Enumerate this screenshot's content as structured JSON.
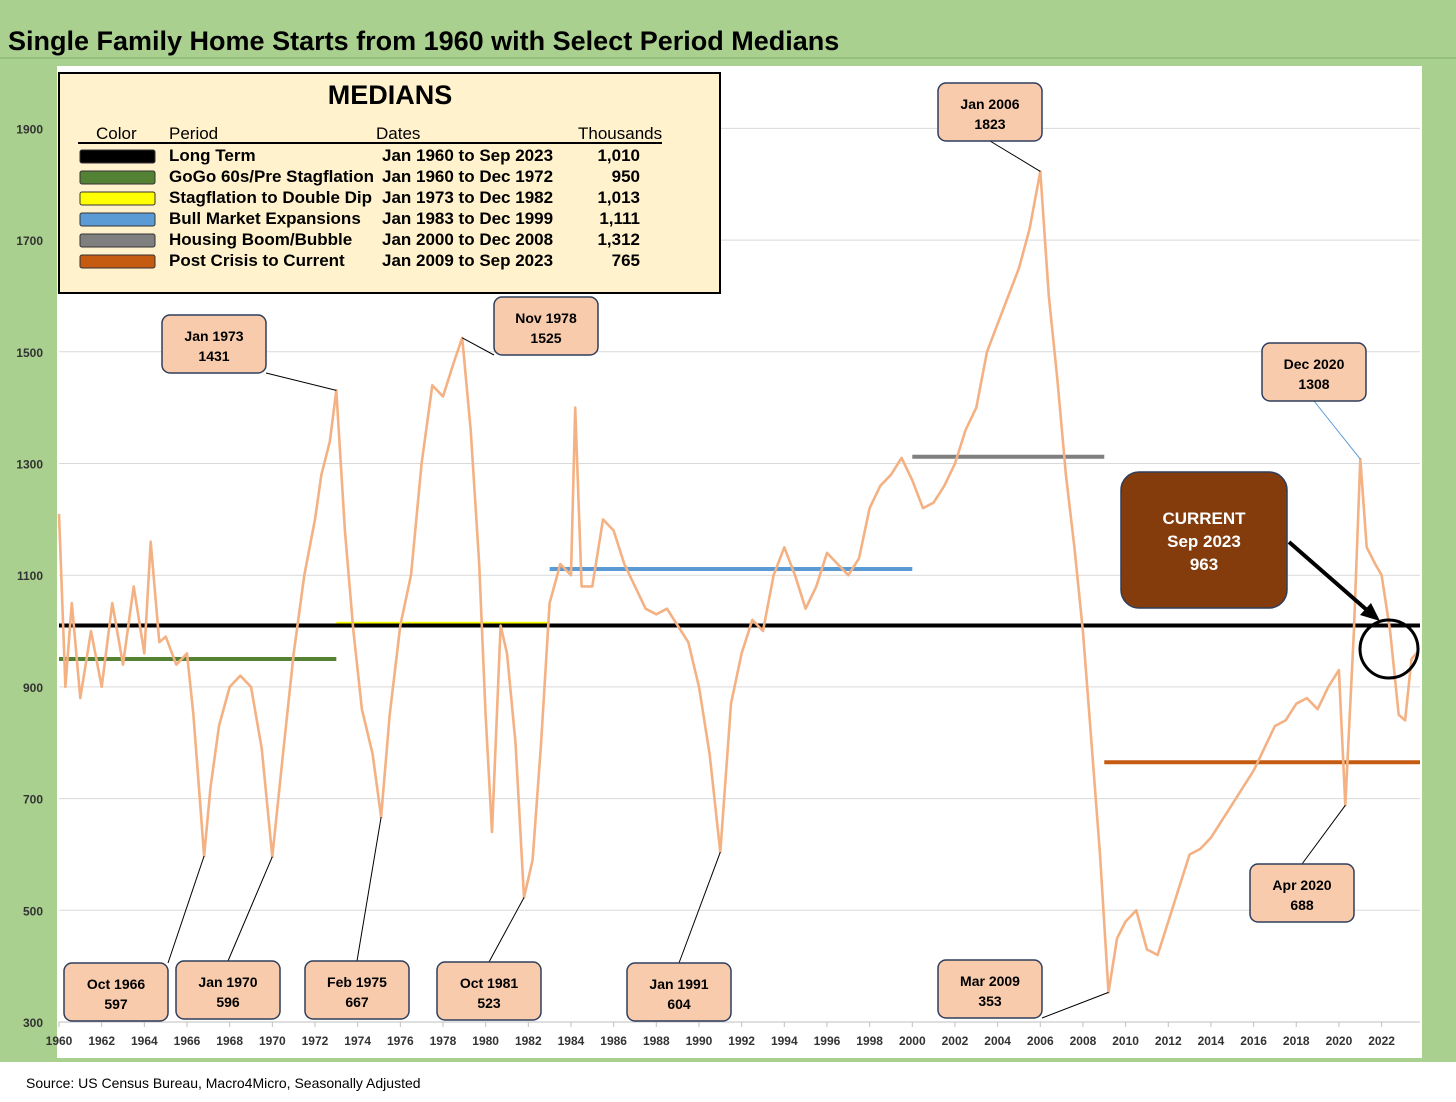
{
  "chart_data": {
    "type": "line",
    "title": "Single Family Home Starts from 1960 with Select Period Medians",
    "source": "Source: US Census Bureau, Macro4Micro, Seasonally Adjusted",
    "xlim": [
      1960,
      2023.8
    ],
    "ylim": [
      300,
      2000
    ],
    "y_ticks": [
      300,
      500,
      700,
      900,
      1100,
      1300,
      1500,
      1700,
      1900
    ],
    "x_ticks": [
      1960,
      1962,
      1964,
      1966,
      1968,
      1970,
      1972,
      1974,
      1976,
      1978,
      1980,
      1982,
      1984,
      1986,
      1988,
      1990,
      1992,
      1994,
      1996,
      1998,
      2000,
      2002,
      2004,
      2006,
      2008,
      2010,
      2012,
      2014,
      2016,
      2018,
      2020,
      2022
    ],
    "grid": "horizontal",
    "series": [
      {
        "color": "#F4B183",
        "points": [
          [
            1960.0,
            1210
          ],
          [
            1960.3,
            900
          ],
          [
            1960.6,
            1050
          ],
          [
            1961.0,
            880
          ],
          [
            1961.5,
            1000
          ],
          [
            1962.0,
            900
          ],
          [
            1962.5,
            1050
          ],
          [
            1963.0,
            940
          ],
          [
            1963.5,
            1080
          ],
          [
            1964.0,
            960
          ],
          [
            1964.3,
            1160
          ],
          [
            1964.7,
            980
          ],
          [
            1965.0,
            990
          ],
          [
            1965.5,
            940
          ],
          [
            1966.0,
            960
          ],
          [
            1966.3,
            850
          ],
          [
            1966.6,
            700
          ],
          [
            1966.8,
            597
          ],
          [
            1967.1,
            720
          ],
          [
            1967.5,
            830
          ],
          [
            1968.0,
            900
          ],
          [
            1968.5,
            920
          ],
          [
            1969.0,
            900
          ],
          [
            1969.5,
            790
          ],
          [
            1970.0,
            596
          ],
          [
            1970.5,
            780
          ],
          [
            1971.0,
            960
          ],
          [
            1971.5,
            1100
          ],
          [
            1972.0,
            1200
          ],
          [
            1972.3,
            1280
          ],
          [
            1972.7,
            1340
          ],
          [
            1973.0,
            1431
          ],
          [
            1973.4,
            1180
          ],
          [
            1973.8,
            1000
          ],
          [
            1974.2,
            860
          ],
          [
            1974.7,
            780
          ],
          [
            1975.1,
            667
          ],
          [
            1975.5,
            850
          ],
          [
            1976.0,
            1010
          ],
          [
            1976.5,
            1100
          ],
          [
            1977.0,
            1300
          ],
          [
            1977.5,
            1440
          ],
          [
            1978.0,
            1420
          ],
          [
            1978.5,
            1480
          ],
          [
            1978.9,
            1525
          ],
          [
            1979.3,
            1360
          ],
          [
            1979.7,
            1120
          ],
          [
            1980.0,
            850
          ],
          [
            1980.3,
            640
          ],
          [
            1980.7,
            1010
          ],
          [
            1981.0,
            960
          ],
          [
            1981.4,
            800
          ],
          [
            1981.8,
            523
          ],
          [
            1982.2,
            590
          ],
          [
            1982.6,
            800
          ],
          [
            1983.0,
            1050
          ],
          [
            1983.5,
            1120
          ],
          [
            1984.0,
            1100
          ],
          [
            1984.2,
            1400
          ],
          [
            1984.5,
            1080
          ],
          [
            1985.0,
            1080
          ],
          [
            1985.5,
            1200
          ],
          [
            1986.0,
            1180
          ],
          [
            1986.5,
            1120
          ],
          [
            1987.0,
            1080
          ],
          [
            1987.5,
            1040
          ],
          [
            1988.0,
            1030
          ],
          [
            1988.5,
            1040
          ],
          [
            1989.0,
            1010
          ],
          [
            1989.5,
            980
          ],
          [
            1990.0,
            900
          ],
          [
            1990.5,
            780
          ],
          [
            1991.0,
            604
          ],
          [
            1991.5,
            870
          ],
          [
            1992.0,
            960
          ],
          [
            1992.5,
            1020
          ],
          [
            1993.0,
            1000
          ],
          [
            1993.5,
            1100
          ],
          [
            1994.0,
            1150
          ],
          [
            1994.5,
            1100
          ],
          [
            1995.0,
            1040
          ],
          [
            1995.5,
            1080
          ],
          [
            1996.0,
            1140
          ],
          [
            1996.5,
            1120
          ],
          [
            1997.0,
            1100
          ],
          [
            1997.5,
            1130
          ],
          [
            1998.0,
            1220
          ],
          [
            1998.5,
            1260
          ],
          [
            1999.0,
            1280
          ],
          [
            1999.5,
            1310
          ],
          [
            2000.0,
            1270
          ],
          [
            2000.5,
            1220
          ],
          [
            2001.0,
            1230
          ],
          [
            2001.5,
            1260
          ],
          [
            2002.0,
            1300
          ],
          [
            2002.5,
            1360
          ],
          [
            2003.0,
            1400
          ],
          [
            2003.5,
            1500
          ],
          [
            2004.0,
            1550
          ],
          [
            2004.5,
            1600
          ],
          [
            2005.0,
            1650
          ],
          [
            2005.5,
            1720
          ],
          [
            2006.0,
            1823
          ],
          [
            2006.4,
            1600
          ],
          [
            2006.8,
            1450
          ],
          [
            2007.2,
            1280
          ],
          [
            2007.6,
            1150
          ],
          [
            2008.0,
            1000
          ],
          [
            2008.4,
            800
          ],
          [
            2008.8,
            600
          ],
          [
            2009.2,
            353
          ],
          [
            2009.6,
            450
          ],
          [
            2010.0,
            480
          ],
          [
            2010.5,
            500
          ],
          [
            2011.0,
            430
          ],
          [
            2011.5,
            420
          ],
          [
            2012.0,
            480
          ],
          [
            2012.5,
            540
          ],
          [
            2013.0,
            600
          ],
          [
            2013.5,
            610
          ],
          [
            2014.0,
            630
          ],
          [
            2014.5,
            660
          ],
          [
            2015.0,
            690
          ],
          [
            2015.5,
            720
          ],
          [
            2016.0,
            750
          ],
          [
            2016.5,
            790
          ],
          [
            2017.0,
            830
          ],
          [
            2017.5,
            840
          ],
          [
            2018.0,
            870
          ],
          [
            2018.5,
            880
          ],
          [
            2019.0,
            860
          ],
          [
            2019.5,
            900
          ],
          [
            2020.0,
            930
          ],
          [
            2020.3,
            688
          ],
          [
            2020.7,
            1000
          ],
          [
            2021.0,
            1308
          ],
          [
            2021.3,
            1150
          ],
          [
            2021.7,
            1120
          ],
          [
            2022.0,
            1100
          ],
          [
            2022.4,
            1000
          ],
          [
            2022.8,
            850
          ],
          [
            2023.1,
            840
          ],
          [
            2023.4,
            950
          ],
          [
            2023.7,
            963
          ]
        ]
      }
    ],
    "medians_box": {
      "title": "MEDIANS",
      "headers": [
        "Color",
        "Period",
        "Dates",
        "Thousands"
      ],
      "rows": [
        {
          "color": "#000000",
          "period": "Long Term",
          "dates": "Jan 1960 to Sep 2023",
          "value": "1,010",
          "median": 1010,
          "start": 1960.0,
          "end": 2023.8
        },
        {
          "color": "#548235",
          "period": "GoGo 60s/Pre Stagflation",
          "dates": "Jan 1960 to Dec 1972",
          "value": "950",
          "median": 950,
          "start": 1960.0,
          "end": 1973.0
        },
        {
          "color": "#FFFF00",
          "period": "Stagflation to Double Dip",
          "dates": "Jan 1973 to Dec 1982",
          "value": "1,013",
          "median": 1013,
          "start": 1973.0,
          "end": 1983.0
        },
        {
          "color": "#5B9BD5",
          "period": "Bull Market Expansions",
          "dates": "Jan 1983 to Dec 1999",
          "value": "1,111",
          "median": 1111,
          "start": 1983.0,
          "end": 2000.0
        },
        {
          "color": "#7F7F7F",
          "period": "Housing Boom/Bubble",
          "dates": "Jan 2000 to Dec 2008",
          "value": "1,312",
          "median": 1312,
          "start": 2000.0,
          "end": 2009.0
        },
        {
          "color": "#C55A11",
          "period": "Post Crisis to Current",
          "dates": "Jan 2009 to Sep 2023",
          "value": "765",
          "median": 765,
          "start": 2009.0,
          "end": 2023.8
        }
      ]
    },
    "annotations": [
      {
        "line1": "Jan 1973",
        "line2": "1431",
        "x": 1973.0,
        "y": 1431
      },
      {
        "line1": "Nov 1978",
        "line2": "1525",
        "x": 1978.9,
        "y": 1525
      },
      {
        "line1": "Jan 2006",
        "line2": "1823",
        "x": 2006.0,
        "y": 1823
      },
      {
        "line1": "Dec 2020",
        "line2": "1308",
        "x": 2021.0,
        "y": 1308
      },
      {
        "line1": "Oct 1966",
        "line2": "597",
        "x": 1966.8,
        "y": 597
      },
      {
        "line1": "Jan 1970",
        "line2": "596",
        "x": 1970.0,
        "y": 596
      },
      {
        "line1": "Feb 1975",
        "line2": "667",
        "x": 1975.1,
        "y": 667
      },
      {
        "line1": "Oct 1981",
        "line2": "523",
        "x": 1981.8,
        "y": 523
      },
      {
        "line1": "Jan 1991",
        "line2": "604",
        "x": 1991.0,
        "y": 604
      },
      {
        "line1": "Mar 2009",
        "line2": "353",
        "x": 2009.2,
        "y": 353
      },
      {
        "line1": "Apr 2020",
        "line2": "688",
        "x": 2020.3,
        "y": 688
      }
    ],
    "current": {
      "label": "CURRENT",
      "date": "Sep 2023",
      "value": "963",
      "x": 2023.7,
      "y": 963,
      "color": "#843C0C"
    }
  }
}
